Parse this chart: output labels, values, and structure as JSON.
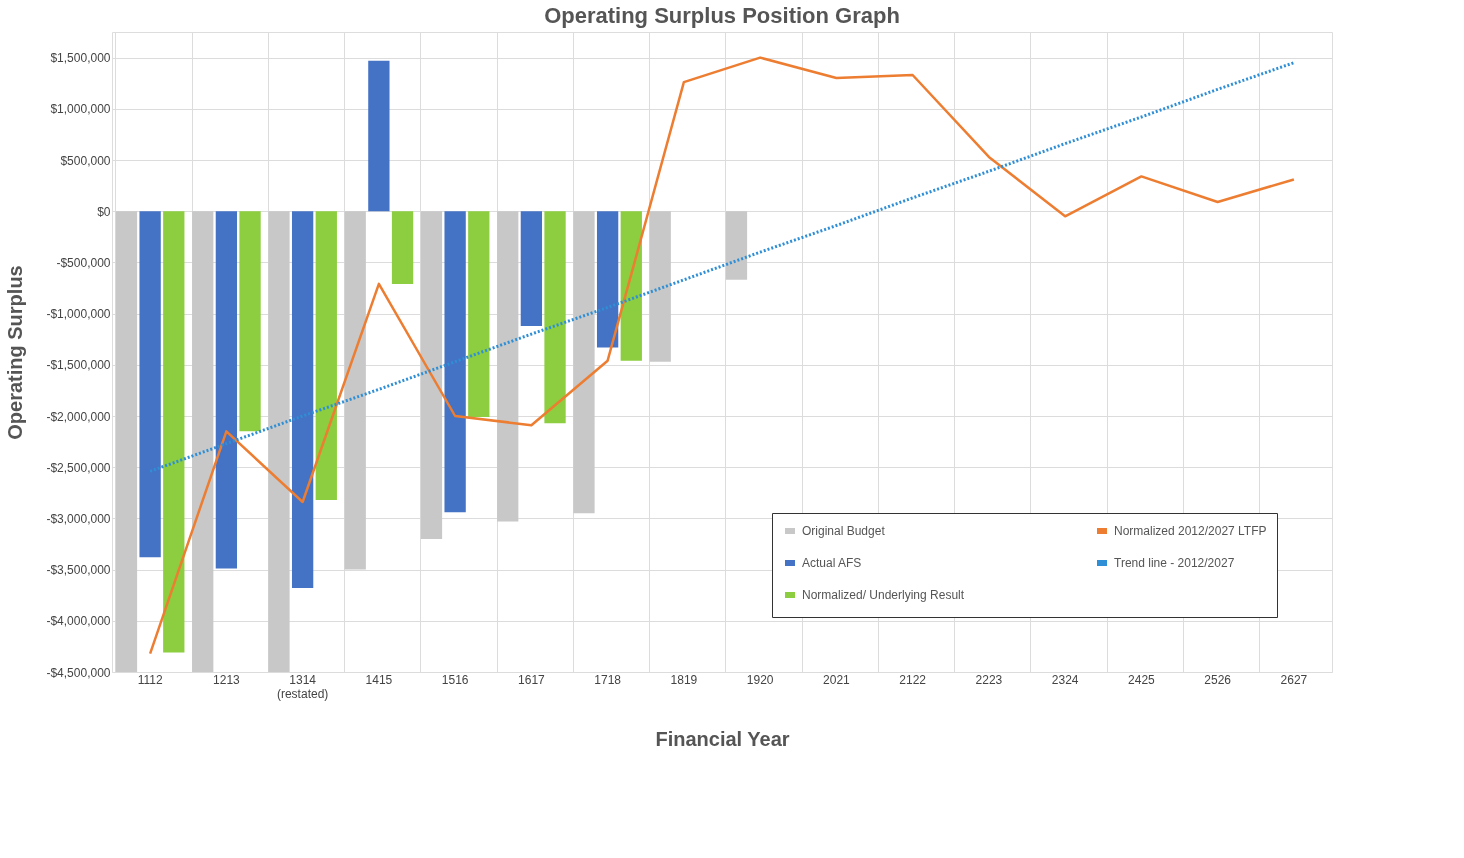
{
  "chart_data": {
    "type": "bar",
    "title": "Operating Surplus Position Graph",
    "xlabel": "Financial Year",
    "ylabel": "Operating Surplus",
    "categories": [
      "1112",
      "1213",
      "1314 (restated)",
      "1415",
      "1516",
      "1617",
      "1718",
      "1819",
      "1920",
      "2021",
      "2122",
      "2223",
      "2324",
      "2425",
      "2526",
      "2627"
    ],
    "series": [
      {
        "name": "Original Budget",
        "color": "#c8c8c8",
        "values": [
          -4500000,
          -4500000,
          -4500000,
          -3500000,
          -3200000,
          -3030000,
          -2950000,
          -1470000,
          -670000,
          null,
          null,
          null,
          null,
          null,
          null,
          null
        ]
      },
      {
        "name": "Actual AFS",
        "color": "#4472c4",
        "values": [
          -3380000,
          -3490000,
          -3680000,
          1470000,
          -2940000,
          -1120000,
          -1330000,
          null,
          null,
          null,
          null,
          null,
          null,
          null,
          null,
          null
        ]
      },
      {
        "name": "Normalized/ Underlying Result",
        "color": "#8cce3f",
        "values": [
          -4310000,
          -2150000,
          -2820000,
          -710000,
          -2010000,
          -2070000,
          -1460000,
          null,
          null,
          null,
          null,
          null,
          null,
          null,
          null,
          null
        ]
      },
      {
        "name": "Normalized 2012/2027 LTFP",
        "type": "line",
        "color": "#ed7d31",
        "line_style": "solid",
        "values": [
          -4320000,
          -2150000,
          -2840000,
          -710000,
          -2000000,
          -2090000,
          -1460000,
          1260000,
          1500000,
          1300000,
          1330000,
          530000,
          -50000,
          340000,
          90000,
          310000
        ]
      },
      {
        "name": "Trend line - 2012/2027",
        "type": "line",
        "color": "#2e8fd6",
        "line_style": "dotted",
        "values": [
          -2540000,
          -2270000,
          -2000000,
          -1740000,
          -1470000,
          -1200000,
          -940000,
          -670000,
          -400000,
          -140000,
          130000,
          390000,
          660000,
          920000,
          1190000,
          1450000
        ]
      }
    ],
    "ylim": [
      -4500000,
      1750000
    ],
    "yticks": [
      {
        "value": -4500000,
        "label": "-$4,500,000"
      },
      {
        "value": -4000000,
        "label": "-$4,000,000"
      },
      {
        "value": -3500000,
        "label": "-$3,500,000"
      },
      {
        "value": -3000000,
        "label": "-$3,000,000"
      },
      {
        "value": -2500000,
        "label": "-$2,500,000"
      },
      {
        "value": -2000000,
        "label": "-$2,000,000"
      },
      {
        "value": -1500000,
        "label": "-$1,500,000"
      },
      {
        "value": -1000000,
        "label": "-$1,000,000"
      },
      {
        "value": -500000,
        "label": "-$500,000"
      },
      {
        "value": 0,
        "label": "$0"
      },
      {
        "value": 500000,
        "label": "$500,000"
      },
      {
        "value": 1000000,
        "label": "$1,000,000"
      },
      {
        "value": 1500000,
        "label": "$1,500,000"
      }
    ],
    "grid": true,
    "legend": "bottom right"
  }
}
